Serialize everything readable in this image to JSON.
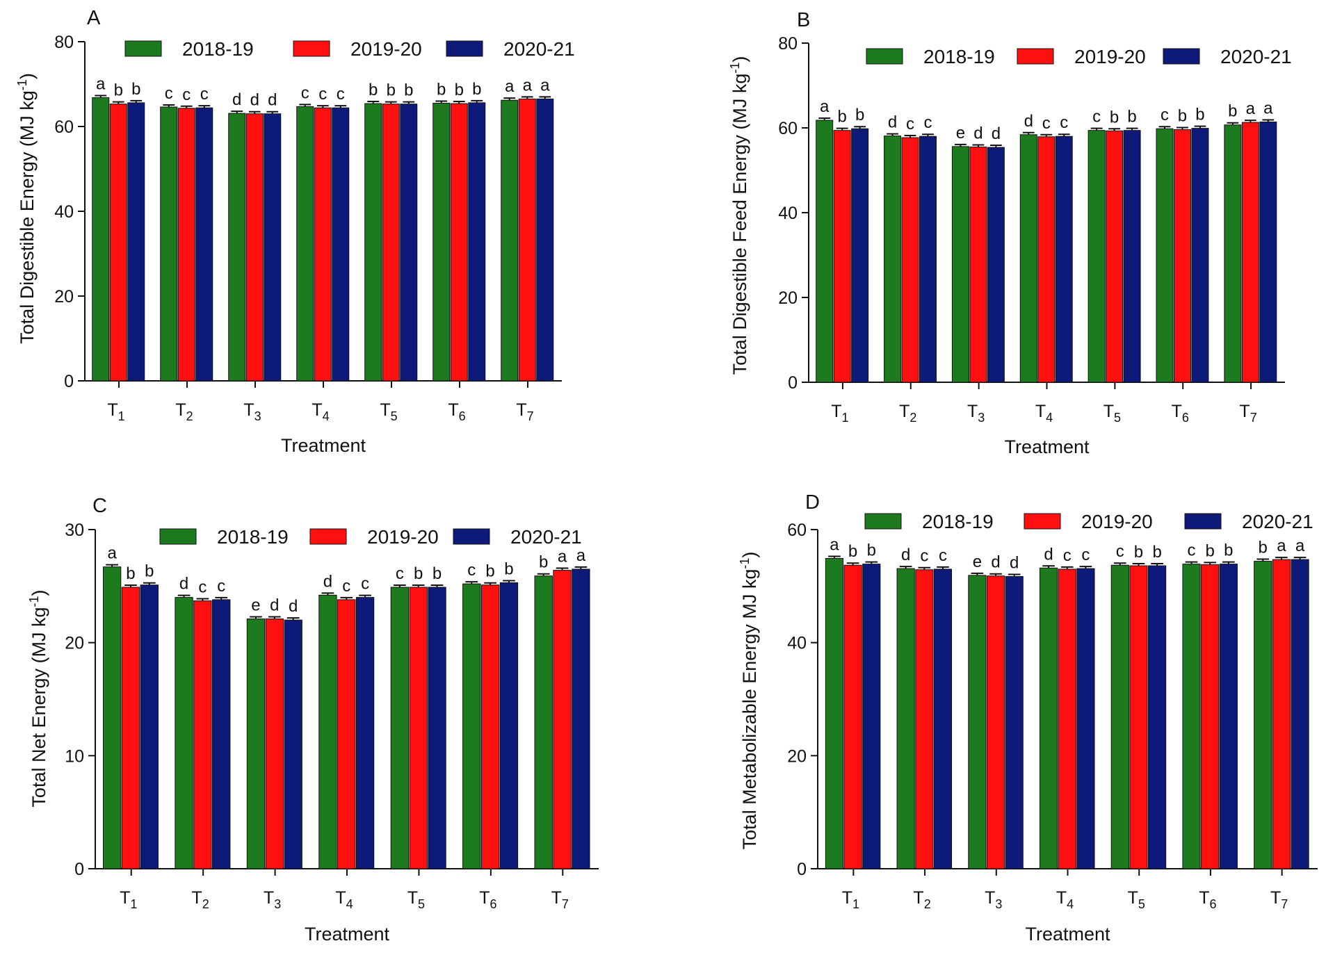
{
  "chart_data": [
    {
      "panel": "A",
      "type": "bar",
      "categories": [
        "T1",
        "T2",
        "T3",
        "T4",
        "T5",
        "T6",
        "T7"
      ],
      "ylabel": "Total Digestible Energy (MJ kg-1)",
      "xlabel": "Treatment",
      "ylim": [
        0,
        80
      ],
      "yticks": [
        0,
        20,
        40,
        60,
        80
      ],
      "legend_position": "top",
      "series": [
        {
          "name": "2018-19",
          "values": [
            66.8,
            64.6,
            63.1,
            64.7,
            65.4,
            65.5,
            66.2
          ],
          "letters": [
            "a",
            "c",
            "d",
            "c",
            "b",
            "b",
            "a"
          ]
        },
        {
          "name": "2019-20",
          "values": [
            65.3,
            64.3,
            63.0,
            64.4,
            65.3,
            65.4,
            66.5
          ],
          "letters": [
            "b",
            "c",
            "d",
            "c",
            "b",
            "b",
            "a"
          ]
        },
        {
          "name": "2020-21",
          "values": [
            65.6,
            64.4,
            63.0,
            64.4,
            65.3,
            65.6,
            66.5
          ],
          "letters": [
            "b",
            "c",
            "d",
            "c",
            "b",
            "b",
            "a"
          ]
        }
      ]
    },
    {
      "panel": "B",
      "type": "bar",
      "categories": [
        "T1",
        "T2",
        "T3",
        "T4",
        "T5",
        "T6",
        "T7"
      ],
      "ylabel": "Total Digestible Feed Energy (MJ kg-1)",
      "xlabel": "Treatment",
      "ylim": [
        0,
        80
      ],
      "yticks": [
        0,
        20,
        40,
        60,
        80
      ],
      "legend_position": "top",
      "series": [
        {
          "name": "2018-19",
          "values": [
            61.8,
            58.1,
            55.6,
            58.4,
            59.4,
            59.8,
            60.7
          ],
          "letters": [
            "a",
            "d",
            "e",
            "d",
            "c",
            "c",
            "b"
          ]
        },
        {
          "name": "2019-20",
          "values": [
            59.4,
            57.7,
            55.5,
            57.9,
            59.3,
            59.6,
            61.3
          ],
          "letters": [
            "b",
            "c",
            "d",
            "c",
            "b",
            "b",
            "a"
          ]
        },
        {
          "name": "2020-21",
          "values": [
            59.8,
            58.0,
            55.4,
            58.0,
            59.4,
            59.9,
            61.4
          ],
          "letters": [
            "b",
            "c",
            "d",
            "c",
            "b",
            "b",
            "a"
          ]
        }
      ]
    },
    {
      "panel": "C",
      "type": "bar",
      "categories": [
        "T1",
        "T2",
        "T3",
        "T4",
        "T5",
        "T6",
        "T7"
      ],
      "ylabel": "Total Net Energy (MJ kg-1)",
      "xlabel": "Treatment",
      "ylim": [
        0,
        30
      ],
      "yticks": [
        0,
        10,
        20,
        30
      ],
      "legend_position": "top",
      "series": [
        {
          "name": "2018-19",
          "values": [
            26.7,
            24.0,
            22.1,
            24.2,
            24.9,
            25.2,
            25.9
          ],
          "letters": [
            "a",
            "d",
            "e",
            "d",
            "c",
            "c",
            "b"
          ]
        },
        {
          "name": "2019-20",
          "values": [
            24.9,
            23.7,
            22.1,
            23.8,
            24.9,
            25.1,
            26.4
          ],
          "letters": [
            "b",
            "c",
            "d",
            "c",
            "b",
            "b",
            "a"
          ]
        },
        {
          "name": "2020-21",
          "values": [
            25.1,
            23.8,
            22.0,
            24.0,
            24.9,
            25.3,
            26.5
          ],
          "letters": [
            "b",
            "c",
            "d",
            "c",
            "b",
            "b",
            "a"
          ]
        }
      ]
    },
    {
      "panel": "D",
      "type": "bar",
      "categories": [
        "T1",
        "T2",
        "T3",
        "T4",
        "T5",
        "T6",
        "T7"
      ],
      "ylabel": "Total Metabolizable Energy MJ kg-1)",
      "xlabel": "Treatment",
      "ylim": [
        0,
        60
      ],
      "yticks": [
        0,
        20,
        40,
        60
      ],
      "legend_position": "top",
      "series": [
        {
          "name": "2018-19",
          "values": [
            54.9,
            53.1,
            51.9,
            53.2,
            53.7,
            53.9,
            54.4
          ],
          "letters": [
            "a",
            "d",
            "e",
            "d",
            "c",
            "c",
            "b"
          ]
        },
        {
          "name": "2019-20",
          "values": [
            53.7,
            52.9,
            51.8,
            53.0,
            53.6,
            53.8,
            54.7
          ],
          "letters": [
            "b",
            "c",
            "d",
            "c",
            "b",
            "b",
            "a"
          ]
        },
        {
          "name": "2020-21",
          "values": [
            53.9,
            53.0,
            51.7,
            53.1,
            53.6,
            53.9,
            54.7
          ],
          "letters": [
            "b",
            "c",
            "d",
            "c",
            "b",
            "b",
            "a"
          ]
        }
      ]
    }
  ],
  "colors": {
    "2018-19": "#1e7a1e",
    "2019-20": "#ff1010",
    "2020-21": "#0e1a7a"
  }
}
